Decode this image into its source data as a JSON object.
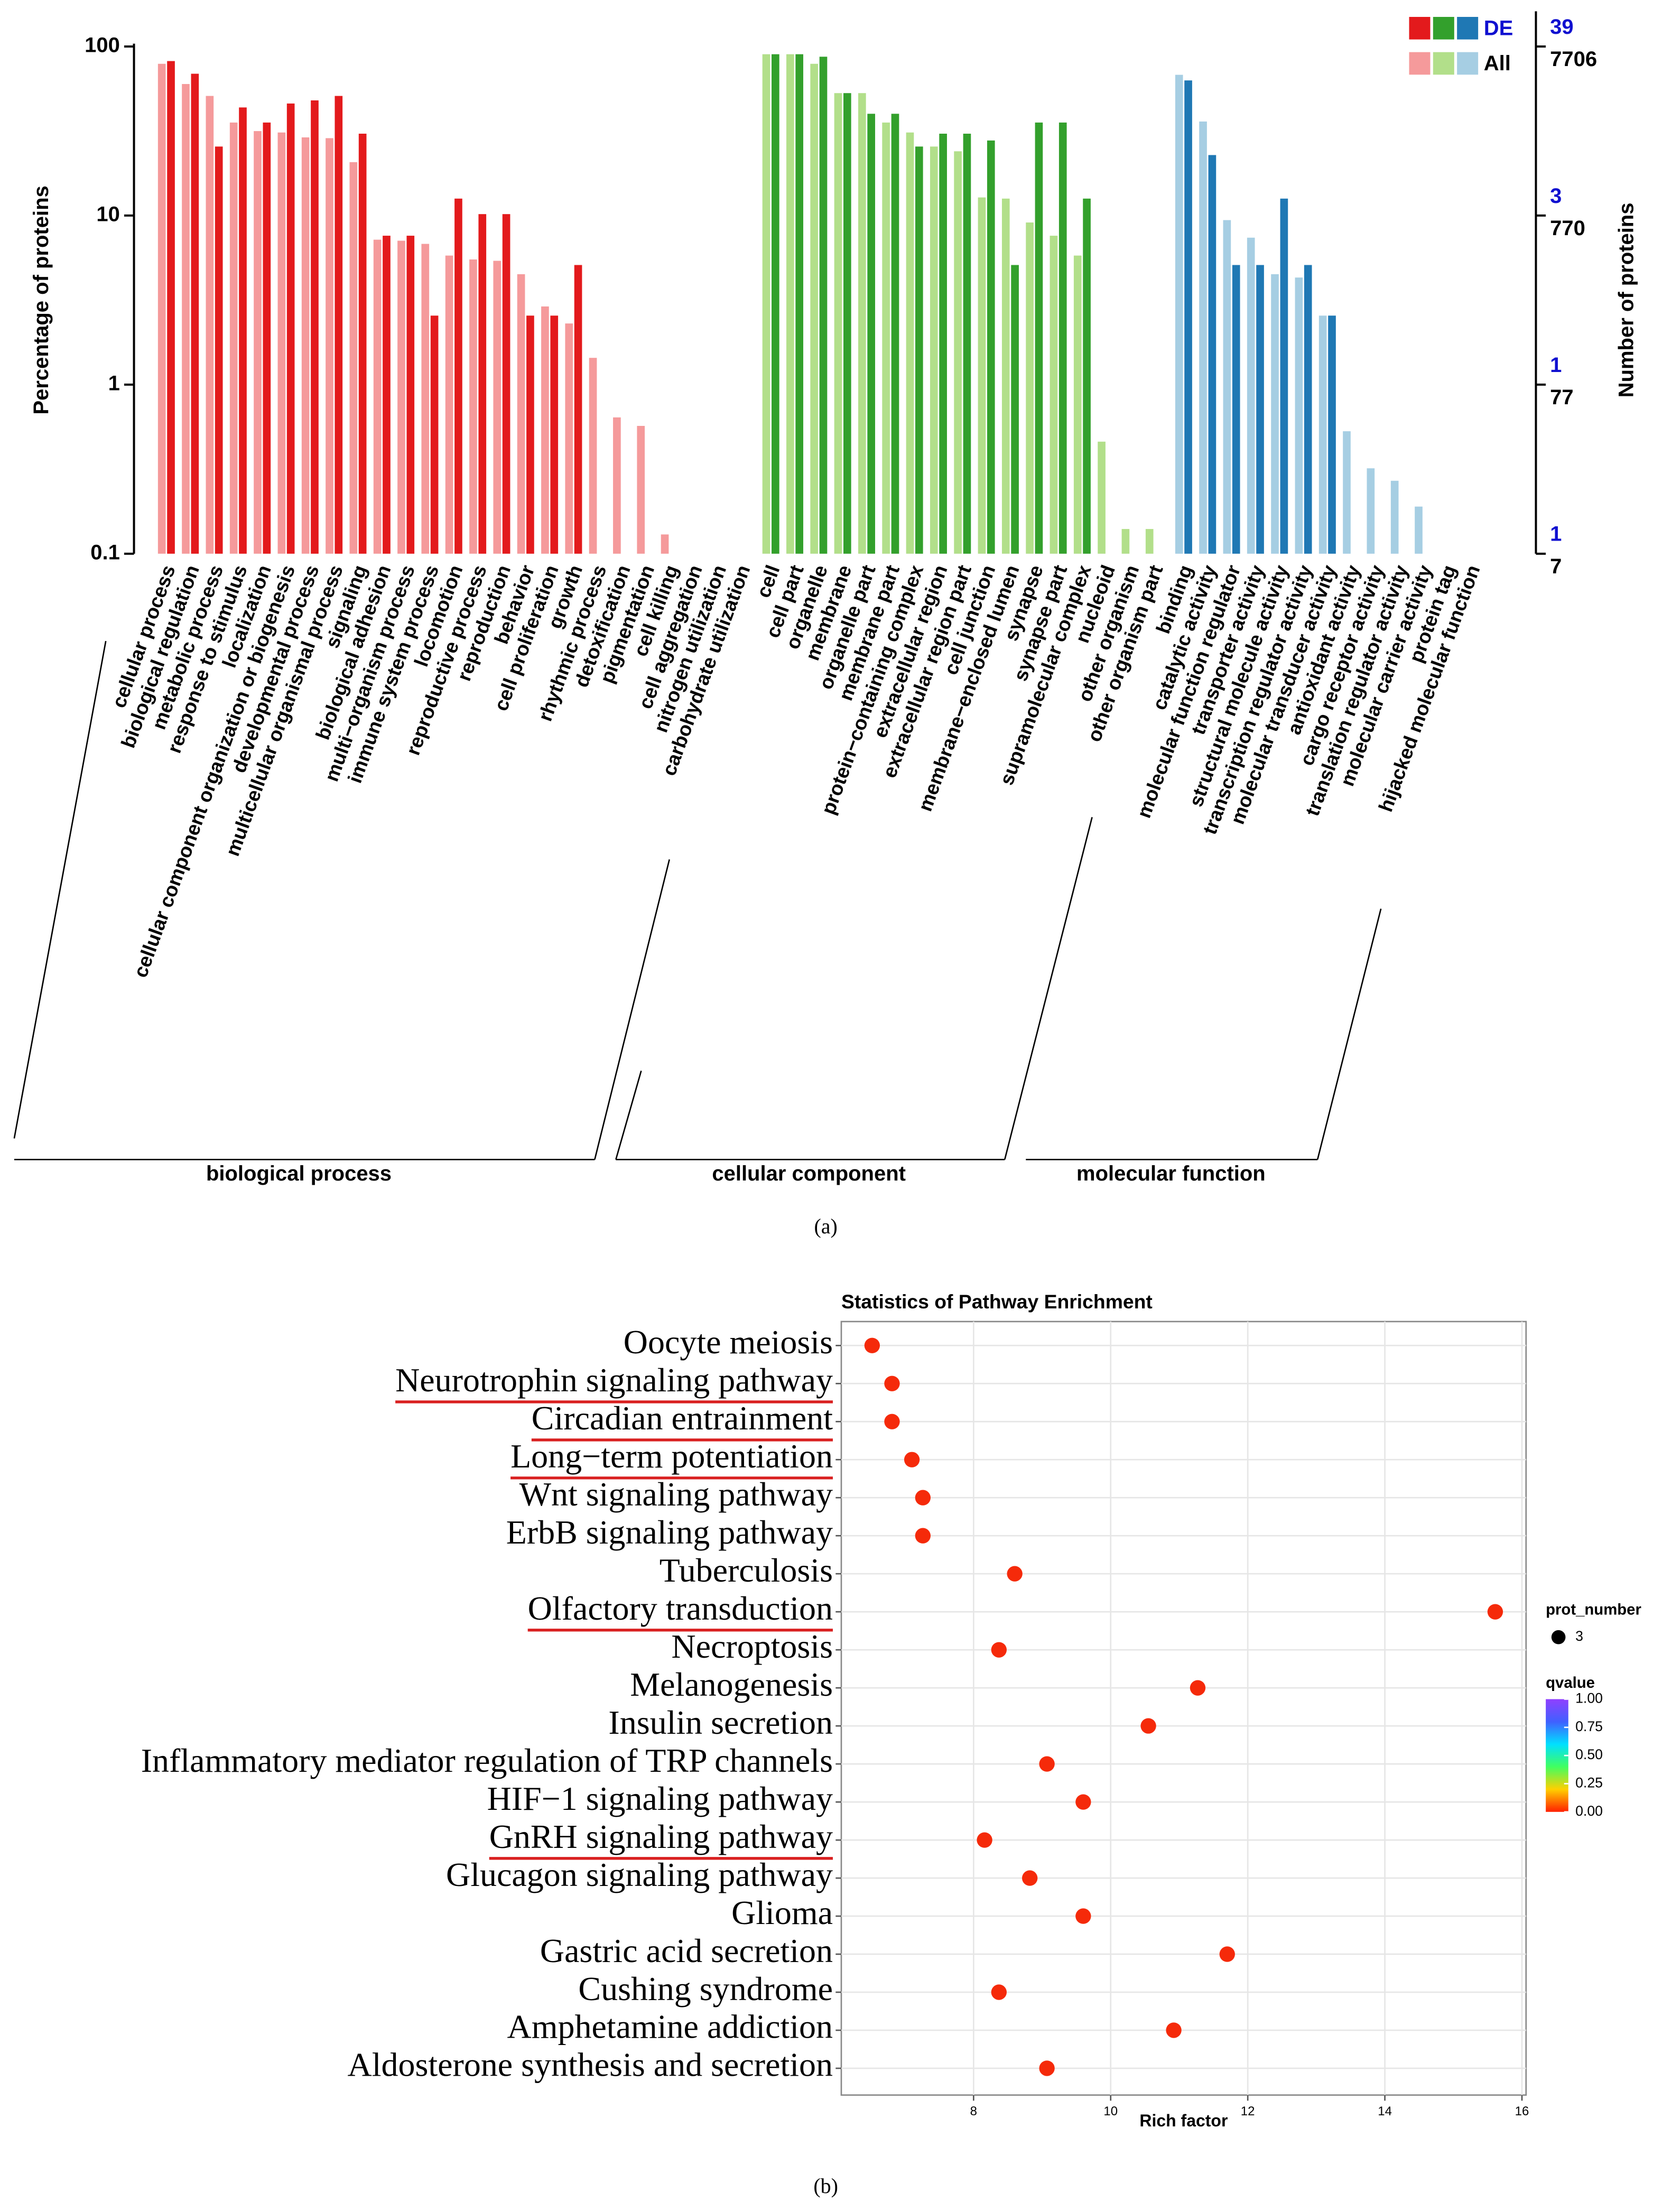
{
  "chart_data": [
    {
      "type": "bar",
      "caption": "(a)",
      "ylabel": "Percentage of proteins",
      "y2label": "Number of proteins",
      "log": true,
      "ylim": [
        0.1,
        100
      ],
      "yticks": [
        0.1,
        1,
        10,
        100
      ],
      "right_ticks": [
        {
          "de": 1,
          "all": 7
        },
        {
          "de": 1,
          "all": 77
        },
        {
          "de": 3,
          "all": 770
        },
        {
          "de": 39,
          "all": 7706
        }
      ],
      "series": [
        {
          "name": "DE",
          "colors": [
            "#e31a1c",
            "#33a02c",
            "#1f78b4"
          ],
          "label_color": "#1010d0"
        },
        {
          "name": "All",
          "colors": [
            "#f59a9b",
            "#b2df8a",
            "#a6cee3"
          ]
        }
      ],
      "groups": [
        {
          "name": "biological process",
          "categories": [
            "cellular process",
            "biological regulation",
            "metabolic process",
            "response to stimulus",
            "localization",
            "cellular component organization or biogenesis",
            "developmental process",
            "multicellular organismal process",
            "signaling",
            "biological adhesion",
            "multi−organism process",
            "immune system process",
            "locomotion",
            "reproductive process",
            "reproduction",
            "behavior",
            "cell proliferation",
            "growth",
            "rhythmic process",
            "detoxification",
            "pigmentation",
            "cell killing",
            "cell aggregation",
            "nitrogen utilization",
            "carbohydrate utilization"
          ],
          "values": {
            "DE": [
              82,
              69,
              25.6,
              43.6,
              35.5,
              46,
              48,
              51,
              30.5,
              7.6,
              7.6,
              2.56,
              12.6,
              10.2,
              10.2,
              2.56,
              2.56,
              5.1,
              null,
              null,
              null,
              null,
              null,
              null,
              null
            ],
            "All": [
              79,
              60,
              51,
              35.5,
              31.6,
              31,
              29,
              28.7,
              20.7,
              7.2,
              7.1,
              6.8,
              5.8,
              5.5,
              5.4,
              4.5,
              2.9,
              2.3,
              1.44,
              0.64,
              0.57,
              0.13,
              null,
              null,
              null
            ]
          }
        },
        {
          "name": "cellular component",
          "categories": [
            "cell",
            "cell part",
            "organelle",
            "membrane",
            "organelle part",
            "membrane part",
            "protein−containing complex",
            "extracellular region",
            "extracellular region part",
            "cell junction",
            "membrane−enclosed lumen",
            "synapse",
            "synapse part",
            "supramolecular complex",
            "nucleoid",
            "other organism",
            "other organism part"
          ],
          "values": {
            "DE": [
              90,
              90,
              87,
              53,
              40,
              40,
              25.6,
              30.5,
              30.5,
              27.8,
              5.1,
              35.5,
              35.5,
              12.6,
              null,
              null,
              null
            ],
            "All": [
              90,
              90,
              79,
              53,
              53,
              35.5,
              31,
              25.6,
              24,
              12.8,
              12.6,
              9.1,
              7.6,
              5.8,
              0.46,
              0.14,
              0.14
            ]
          }
        },
        {
          "name": "molecular function",
          "categories": [
            "binding",
            "catalytic activity",
            "molecular function regulator",
            "transporter activity",
            "structural molecule activity",
            "transcription regulator activity",
            "molecular transducer activity",
            "antioxidant activity",
            "cargo receptor activity",
            "translation regulator activity",
            "molecular carrier activity",
            "protein tag",
            "hijacked molecular function"
          ],
          "values": {
            "DE": [
              63,
              22.8,
              5.1,
              5.1,
              12.6,
              5.1,
              2.56,
              null,
              null,
              null,
              null,
              null,
              null
            ],
            "All": [
              68,
              36,
              9.4,
              7.4,
              4.5,
              4.3,
              2.56,
              0.53,
              0.32,
              0.27,
              0.19,
              null,
              null
            ]
          }
        }
      ]
    },
    {
      "type": "dot",
      "caption": "(b)",
      "title": "Statistics of Pathway Enrichment",
      "xlabel": "Rich factor",
      "categories": [
        "Oocyte meiosis",
        "Neurotrophin signaling pathway",
        "Circadian entrainment",
        "Long−term potentiation",
        "Wnt signaling pathway",
        "ErbB signaling pathway",
        "Tuberculosis",
        "Olfactory transduction",
        "Necroptosis",
        "Melanogenesis",
        "Insulin secretion",
        "Inflammatory mediator regulation of TRP channels",
        "HIF−1 signaling pathway",
        "GnRH signaling pathway",
        "Glucagon signaling pathway",
        "Glioma",
        "Gastric acid secretion",
        "Cushing syndrome",
        "Amphetamine addiction",
        "Aldosterone synthesis and secretion"
      ],
      "values": [
        6.52,
        6.81,
        6.81,
        7.1,
        7.26,
        7.26,
        8.6,
        15.61,
        8.37,
        11.27,
        10.55,
        9.07,
        9.6,
        8.16,
        8.82,
        9.6,
        11.7,
        8.37,
        10.92,
        9.07
      ],
      "underlined": [
        false,
        true,
        true,
        true,
        false,
        false,
        false,
        true,
        false,
        false,
        false,
        false,
        false,
        true,
        false,
        false,
        false,
        false,
        false,
        false
      ],
      "underline_color": "#d92020",
      "color": "#f52a0a",
      "grid": true,
      "xlim": [
        6.07,
        16.06
      ],
      "xticks": [
        8,
        10,
        12,
        14,
        16
      ],
      "size_legend": {
        "title": "prot_number",
        "values": [
          3
        ]
      },
      "color_legend": {
        "title": "qvalue",
        "clim": [
          0,
          1
        ],
        "colorscale": [
          "#ff2000",
          "#ffd000",
          "#40ff60",
          "#00e0ff",
          "#4060ff",
          "#9040ff"
        ],
        "ticks": [
          {
            "value": 1,
            "label": "1.00"
          },
          {
            "value": 0.75,
            "label": "0.75"
          },
          {
            "value": 0.5,
            "label": "0.50"
          },
          {
            "value": 0.25,
            "label": "0.25"
          },
          {
            "value": 0,
            "label": "0.00"
          }
        ]
      }
    }
  ]
}
